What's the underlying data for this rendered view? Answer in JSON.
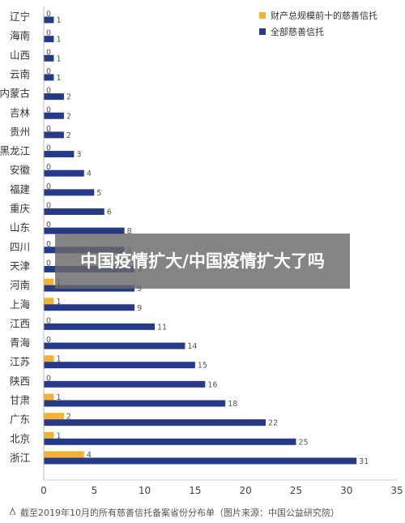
{
  "chart_data": {
    "type": "bar",
    "orientation": "horizontal",
    "categories": [
      "辽宁",
      "海南",
      "山西",
      "云南",
      "内蒙古",
      "吉林",
      "贵州",
      "黑龙江",
      "安徽",
      "福建",
      "重庆",
      "山东",
      "四川",
      "天津",
      "河南",
      "上海",
      "江西",
      "青海",
      "江苏",
      "陕西",
      "甘肃",
      "广东",
      "北京",
      "浙江"
    ],
    "series": [
      {
        "name": "财产总规模前十的慈善信托",
        "color": "#f5b22d",
        "values": [
          0,
          0,
          0,
          0,
          0,
          0,
          0,
          0,
          0,
          0,
          0,
          0,
          0,
          0,
          1,
          1,
          0,
          0,
          1,
          0,
          1,
          2,
          1,
          4
        ]
      },
      {
        "name": "全部慈善信托",
        "color": "#263a8c",
        "values": [
          1,
          1,
          1,
          1,
          2,
          2,
          2,
          3,
          4,
          5,
          6,
          8,
          8,
          9,
          9,
          9,
          11,
          14,
          15,
          16,
          18,
          22,
          25,
          31
        ]
      }
    ],
    "xlim": [
      0,
      35
    ],
    "xticks": [
      "0",
      "5",
      "10",
      "15",
      "20",
      "25",
      "30",
      "35"
    ],
    "legend_position": "top-right",
    "grid": false
  },
  "footnote": "截至2019年10月的所有慈善信托备案省份分布单（图片来源：中国公益研究院）",
  "footnote_icon": "triangle-up-icon",
  "overlay_text": "中国疫情扩大/中国疫情扩大了吗"
}
